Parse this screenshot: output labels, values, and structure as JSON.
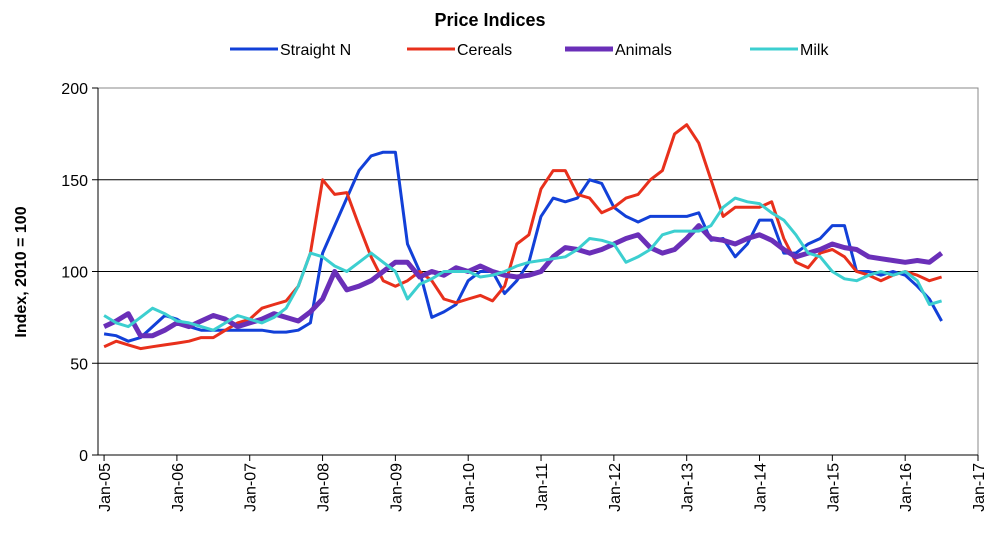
{
  "chart_data": {
    "type": "line",
    "title": "Price Indices",
    "ylabel": "Index, 2010 = 100",
    "x": [
      "2005-01",
      "2005-03",
      "2005-05",
      "2005-07",
      "2005-09",
      "2005-11",
      "2006-01",
      "2006-03",
      "2006-05",
      "2006-07",
      "2006-09",
      "2006-11",
      "2007-01",
      "2007-03",
      "2007-05",
      "2007-07",
      "2007-09",
      "2007-11",
      "2008-01",
      "2008-03",
      "2008-05",
      "2008-07",
      "2008-09",
      "2008-11",
      "2009-01",
      "2009-03",
      "2009-05",
      "2009-07",
      "2009-09",
      "2009-11",
      "2010-01",
      "2010-03",
      "2010-05",
      "2010-07",
      "2010-09",
      "2010-11",
      "2011-01",
      "2011-03",
      "2011-05",
      "2011-07",
      "2011-09",
      "2011-11",
      "2012-01",
      "2012-03",
      "2012-05",
      "2012-07",
      "2012-09",
      "2012-11",
      "2013-01",
      "2013-03",
      "2013-05",
      "2013-07",
      "2013-09",
      "2013-11",
      "2014-01",
      "2014-03",
      "2014-05",
      "2014-07",
      "2014-09",
      "2014-11",
      "2015-01",
      "2015-03",
      "2015-05",
      "2015-07",
      "2015-09",
      "2015-11",
      "2016-01",
      "2016-03",
      "2016-05",
      "2016-07"
    ],
    "series": [
      {
        "name": "Straight N",
        "color": "#1240d8",
        "width": 3,
        "values": [
          66,
          65,
          62,
          64,
          70,
          76,
          74,
          70,
          68,
          68,
          68,
          68,
          68,
          68,
          67,
          67,
          68,
          72,
          110,
          125,
          140,
          155,
          163,
          165,
          165,
          115,
          100,
          75,
          78,
          82,
          95,
          100,
          100,
          88,
          95,
          105,
          130,
          140,
          138,
          140,
          150,
          148,
          135,
          130,
          127,
          130,
          130,
          130,
          130,
          132,
          117,
          118,
          108,
          115,
          128,
          128,
          110,
          110,
          115,
          118,
          125,
          125,
          100,
          100,
          98,
          100,
          98,
          92,
          85,
          73
        ]
      },
      {
        "name": "Cereals",
        "color": "#e8301c",
        "width": 3,
        "values": [
          59,
          62,
          60,
          58,
          59,
          60,
          61,
          62,
          64,
          64,
          68,
          72,
          74,
          80,
          82,
          84,
          92,
          110,
          150,
          142,
          143,
          125,
          108,
          95,
          92,
          95,
          100,
          95,
          85,
          83,
          85,
          87,
          84,
          92,
          115,
          120,
          145,
          155,
          155,
          142,
          140,
          132,
          135,
          140,
          142,
          150,
          155,
          175,
          180,
          170,
          150,
          130,
          135,
          135,
          135,
          138,
          118,
          105,
          102,
          110,
          112,
          108,
          100,
          98,
          95,
          98,
          100,
          98,
          95,
          97
        ]
      },
      {
        "name": "Animals",
        "color": "#6a2fb8",
        "width": 5,
        "values": [
          70,
          73,
          77,
          65,
          65,
          68,
          72,
          70,
          73,
          76,
          74,
          70,
          72,
          74,
          77,
          75,
          73,
          78,
          85,
          100,
          90,
          92,
          95,
          100,
          105,
          105,
          97,
          100,
          98,
          102,
          100,
          103,
          100,
          98,
          97,
          98,
          100,
          108,
          113,
          112,
          110,
          112,
          115,
          118,
          120,
          113,
          110,
          112,
          118,
          125,
          118,
          117,
          115,
          118,
          120,
          117,
          112,
          108,
          110,
          112,
          115,
          113,
          112,
          108,
          107,
          106,
          105,
          106,
          105,
          110
        ]
      },
      {
        "name": "Milk",
        "color": "#3ccfd0",
        "width": 3,
        "values": [
          76,
          72,
          70,
          75,
          80,
          77,
          73,
          72,
          70,
          68,
          72,
          76,
          74,
          72,
          75,
          80,
          92,
          110,
          108,
          103,
          100,
          105,
          110,
          105,
          100,
          85,
          93,
          96,
          100,
          100,
          100,
          97,
          98,
          100,
          103,
          105,
          106,
          107,
          108,
          112,
          118,
          117,
          115,
          105,
          108,
          112,
          120,
          122,
          122,
          122,
          125,
          135,
          140,
          138,
          137,
          132,
          128,
          120,
          110,
          108,
          100,
          96,
          95,
          98,
          100,
          98,
          100,
          95,
          82,
          84
        ]
      }
    ],
    "xlim": [
      "2004-12",
      "2017-01"
    ],
    "xticks": [
      {
        "value": "2005-01",
        "label": "Jan-05"
      },
      {
        "value": "2006-01",
        "label": "Jan-06"
      },
      {
        "value": "2007-01",
        "label": "Jan-07"
      },
      {
        "value": "2008-01",
        "label": "Jan-08"
      },
      {
        "value": "2009-01",
        "label": "Jan-09"
      },
      {
        "value": "2010-01",
        "label": "Jan-10"
      },
      {
        "value": "2011-01",
        "label": "Jan-11"
      },
      {
        "value": "2012-01",
        "label": "Jan-12"
      },
      {
        "value": "2013-01",
        "label": "Jan-13"
      },
      {
        "value": "2014-01",
        "label": "Jan-14"
      },
      {
        "value": "2015-01",
        "label": "Jan-15"
      },
      {
        "value": "2016-01",
        "label": "Jan-16"
      },
      {
        "value": "2017-01",
        "label": "Jan-17"
      }
    ],
    "ylim": [
      0,
      200
    ],
    "yticks": [
      0,
      50,
      100,
      150,
      200
    ],
    "grid": true
  }
}
